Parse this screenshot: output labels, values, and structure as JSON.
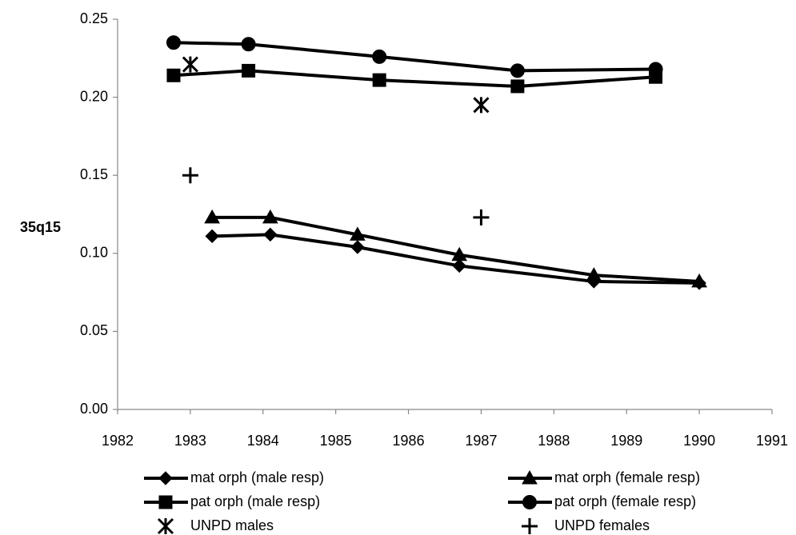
{
  "chart_data": {
    "type": "line",
    "y_label": "35q15",
    "xlim": [
      1982,
      1991
    ],
    "xticks": [
      1982,
      1983,
      1984,
      1985,
      1986,
      1987,
      1988,
      1989,
      1990,
      1991
    ],
    "ylim": [
      0,
      0.25
    ],
    "yticks": [
      {
        "value": 0,
        "label": "0.00"
      },
      {
        "value": 0.05,
        "label": "0.05"
      },
      {
        "value": 0.1,
        "label": "0.10"
      },
      {
        "value": 0.15,
        "label": "0.15"
      },
      {
        "value": 0.2,
        "label": "0.20"
      },
      {
        "value": 0.25,
        "label": "0.25"
      }
    ],
    "series": [
      {
        "name": "mat orph (male resp)",
        "color": "#000000",
        "marker": "diamond",
        "line": true,
        "x": [
          1983.3,
          1984.1,
          1985.3,
          1986.7,
          1988.55,
          1990
        ],
        "values": [
          0.111,
          0.112,
          0.104,
          0.092,
          0.082,
          0.081
        ]
      },
      {
        "name": "mat orph (female resp)",
        "color": "#000000",
        "marker": "triangle",
        "line": true,
        "x": [
          1983.3,
          1984.1,
          1985.3,
          1986.7,
          1988.55,
          1990
        ],
        "values": [
          0.123,
          0.123,
          0.112,
          0.099,
          0.086,
          0.082
        ]
      },
      {
        "name": "pat orph (male resp)",
        "color": "#000000",
        "marker": "square",
        "line": true,
        "x": [
          1982.77,
          1983.8,
          1985.6,
          1987.5,
          1989.4
        ],
        "values": [
          0.214,
          0.217,
          0.211,
          0.207,
          0.213
        ]
      },
      {
        "name": "pat orph (female resp)",
        "color": "#000000",
        "marker": "circle",
        "line": true,
        "x": [
          1982.77,
          1983.8,
          1985.6,
          1987.5,
          1989.4
        ],
        "values": [
          0.235,
          0.234,
          0.226,
          0.217,
          0.218
        ]
      },
      {
        "name": "UNPD males",
        "color": "#000000",
        "marker": "star",
        "line": false,
        "x": [
          1983,
          1987
        ],
        "values": [
          0.221,
          0.195
        ]
      },
      {
        "name": "UNPD females",
        "color": "#000000",
        "marker": "plus",
        "line": false,
        "x": [
          1983,
          1987
        ],
        "values": [
          0.15,
          0.123
        ]
      }
    ]
  }
}
